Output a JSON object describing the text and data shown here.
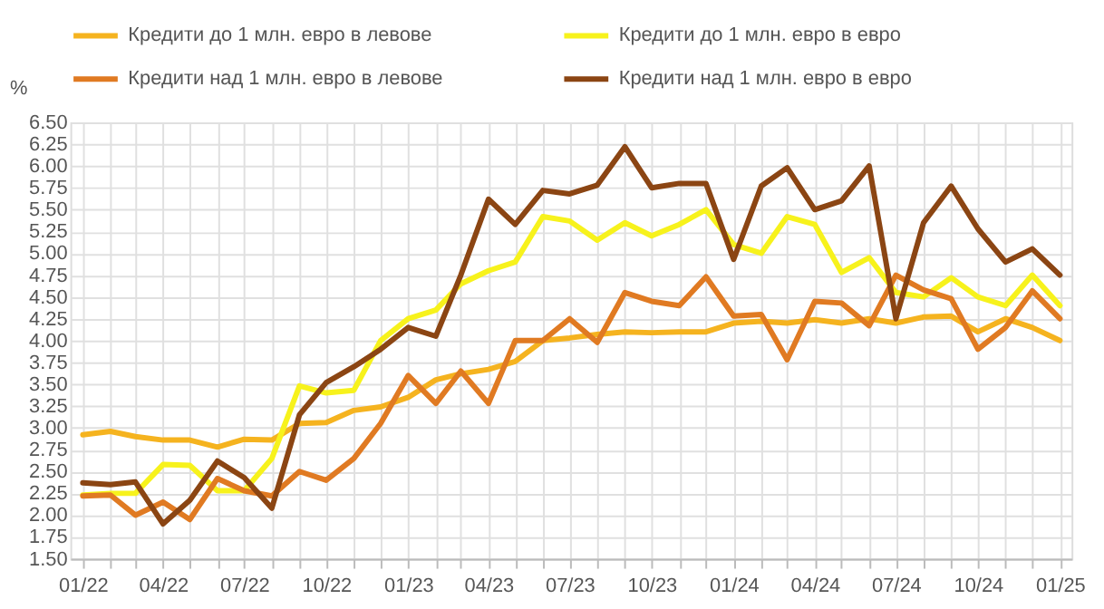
{
  "chart_data": {
    "type": "line",
    "ylabel": "%",
    "x": [
      "2022-01",
      "2022-02",
      "2022-03",
      "2022-04",
      "2022-05",
      "2022-06",
      "2022-07",
      "2022-08",
      "2022-09",
      "2022-10",
      "2022-11",
      "2022-12",
      "2023-01",
      "2023-02",
      "2023-03",
      "2023-04",
      "2023-05",
      "2023-06",
      "2023-07",
      "2023-08",
      "2023-09",
      "2023-10",
      "2023-11",
      "2023-12",
      "2024-01",
      "2024-02",
      "2024-03",
      "2024-04",
      "2024-05",
      "2024-06",
      "2024-07",
      "2024-08",
      "2024-09",
      "2024-10",
      "2024-11",
      "2024-12",
      "2025-01"
    ],
    "series": [
      {
        "name": "Кредити до 1 млн. евро в левове",
        "color": "#f5b31f",
        "values": [
          2.92,
          2.96,
          2.9,
          2.86,
          2.86,
          2.78,
          2.87,
          2.86,
          3.05,
          3.06,
          3.2,
          3.24,
          3.35,
          3.55,
          3.62,
          3.67,
          3.76,
          4.0,
          4.03,
          4.07,
          4.1,
          4.09,
          4.1,
          4.1,
          4.2,
          4.22,
          4.2,
          4.24,
          4.2,
          4.25,
          4.2,
          4.27,
          4.28,
          4.1,
          4.25,
          4.15,
          4.0
        ]
      },
      {
        "name": "Кредити до 1 млн. евро в евро",
        "color": "#f7f21c",
        "values": [
          2.23,
          2.25,
          2.25,
          2.58,
          2.57,
          2.28,
          2.28,
          2.65,
          3.48,
          3.4,
          3.43,
          4.0,
          4.25,
          4.35,
          4.65,
          4.8,
          4.9,
          5.42,
          5.37,
          5.15,
          5.35,
          5.2,
          5.33,
          5.5,
          5.1,
          5.0,
          5.42,
          5.33,
          4.78,
          4.95,
          4.55,
          4.5,
          4.72,
          4.5,
          4.4,
          4.75,
          4.4
        ]
      },
      {
        "name": "Кредити над 1 млн. евро в левове",
        "color": "#e07a22",
        "values": [
          2.22,
          2.23,
          2.0,
          2.15,
          1.95,
          2.42,
          2.28,
          2.22,
          2.5,
          2.4,
          2.65,
          3.05,
          3.6,
          3.28,
          3.65,
          3.28,
          4.0,
          4.0,
          4.25,
          3.98,
          4.55,
          4.45,
          4.4,
          4.73,
          4.28,
          4.3,
          3.78,
          4.45,
          4.43,
          4.17,
          4.75,
          4.58,
          4.48,
          3.9,
          4.15,
          4.57,
          4.25
        ]
      },
      {
        "name": "Кредити над 1 млн. евро в евро",
        "color": "#8b4513",
        "values": [
          2.37,
          2.35,
          2.38,
          1.9,
          2.17,
          2.62,
          2.43,
          2.08,
          3.15,
          3.52,
          3.7,
          3.9,
          4.15,
          4.05,
          4.75,
          5.62,
          5.33,
          5.72,
          5.68,
          5.78,
          6.22,
          5.75,
          5.8,
          5.8,
          4.93,
          5.77,
          5.98,
          5.5,
          5.6,
          6.0,
          4.25,
          5.35,
          5.77,
          5.28,
          4.9,
          5.05,
          4.75
        ]
      }
    ],
    "xlim": [
      "2021-12-18",
      "2025-01-14"
    ],
    "xticks": [
      {
        "value": "2022-01",
        "label": "01/22"
      },
      {
        "value": "2022-02",
        "label": null
      },
      {
        "value": "2022-03",
        "label": null
      },
      {
        "value": "2022-04",
        "label": "04/22"
      },
      {
        "value": "2022-05",
        "label": null
      },
      {
        "value": "2022-06",
        "label": null
      },
      {
        "value": "2022-07",
        "label": "07/22"
      },
      {
        "value": "2022-08",
        "label": null
      },
      {
        "value": "2022-09",
        "label": null
      },
      {
        "value": "2022-10",
        "label": "10/22"
      },
      {
        "value": "2022-11",
        "label": null
      },
      {
        "value": "2022-12",
        "label": null
      },
      {
        "value": "2023-01",
        "label": "01/23"
      },
      {
        "value": "2023-02",
        "label": null
      },
      {
        "value": "2023-03",
        "label": null
      },
      {
        "value": "2023-04",
        "label": "04/23"
      },
      {
        "value": "2023-05",
        "label": null
      },
      {
        "value": "2023-06",
        "label": null
      },
      {
        "value": "2023-07",
        "label": "07/23"
      },
      {
        "value": "2023-08",
        "label": null
      },
      {
        "value": "2023-09",
        "label": null
      },
      {
        "value": "2023-10",
        "label": "10/23"
      },
      {
        "value": "2023-11",
        "label": null
      },
      {
        "value": "2023-12",
        "label": null
      },
      {
        "value": "2024-01",
        "label": "01/24"
      },
      {
        "value": "2024-02",
        "label": null
      },
      {
        "value": "2024-03",
        "label": null
      },
      {
        "value": "2024-04",
        "label": "04/24"
      },
      {
        "value": "2024-05",
        "label": null
      },
      {
        "value": "2024-06",
        "label": null
      },
      {
        "value": "2024-07",
        "label": "07/24"
      },
      {
        "value": "2024-08",
        "label": null
      },
      {
        "value": "2024-09",
        "label": null
      },
      {
        "value": "2024-10",
        "label": "10/24"
      },
      {
        "value": "2024-11",
        "label": null
      },
      {
        "value": "2024-12",
        "label": null
      },
      {
        "value": "2025-01",
        "label": "01/25"
      }
    ],
    "ylim": [
      1.5,
      6.5
    ],
    "yticks": [
      {
        "value": 1.5,
        "label": "1.50"
      },
      {
        "value": 1.75,
        "label": "1.75"
      },
      {
        "value": 2.0,
        "label": "2.00"
      },
      {
        "value": 2.25,
        "label": "2.25"
      },
      {
        "value": 2.5,
        "label": "2.50"
      },
      {
        "value": 2.75,
        "label": "2.75"
      },
      {
        "value": 3.0,
        "label": "3.00"
      },
      {
        "value": 3.25,
        "label": "3.25"
      },
      {
        "value": 3.5,
        "label": "3.50"
      },
      {
        "value": 3.75,
        "label": "3.75"
      },
      {
        "value": 4.0,
        "label": "4.00"
      },
      {
        "value": 4.25,
        "label": "4.25"
      },
      {
        "value": 4.5,
        "label": "4.50"
      },
      {
        "value": 4.75,
        "label": "4.75"
      },
      {
        "value": 5.0,
        "label": "5.00"
      },
      {
        "value": 5.25,
        "label": "5.25"
      },
      {
        "value": 5.5,
        "label": "5.50"
      },
      {
        "value": 5.75,
        "label": "5.75"
      },
      {
        "value": 6.0,
        "label": "6.00"
      },
      {
        "value": 6.25,
        "label": "6.25"
      },
      {
        "value": 6.5,
        "label": "6.50"
      }
    ],
    "grid": true,
    "legend": "top",
    "marker": "none",
    "line_style": "solid"
  }
}
